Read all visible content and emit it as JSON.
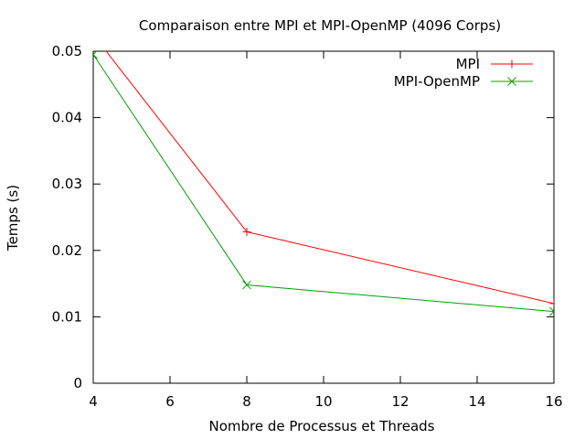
{
  "chart_data": {
    "type": "line",
    "title": "Comparaison entre MPI et MPI-OpenMP (4096 Corps)",
    "xlabel": "Nombre de Processus et Threads",
    "ylabel": "Temps (s)",
    "xlim": [
      4,
      16
    ],
    "ylim": [
      0,
      0.05
    ],
    "x_ticks": [
      "4",
      "6",
      "8",
      "10",
      "12",
      "14",
      "16"
    ],
    "y_ticks": [
      "0",
      "0.01",
      "0.02",
      "0.03",
      "0.04",
      "0.05"
    ],
    "grid": false,
    "legend_position": "top-right",
    "series": [
      {
        "name": "MPI",
        "color": "#ff0000",
        "marker": "plus",
        "x": [
          4,
          8,
          16
        ],
        "y": [
          0.0525,
          0.0228,
          0.012
        ]
      },
      {
        "name": "MPI-OpenMP",
        "color": "#00a000",
        "marker": "cross",
        "x": [
          4,
          8,
          16
        ],
        "y": [
          0.0495,
          0.0148,
          0.0108
        ]
      }
    ]
  }
}
